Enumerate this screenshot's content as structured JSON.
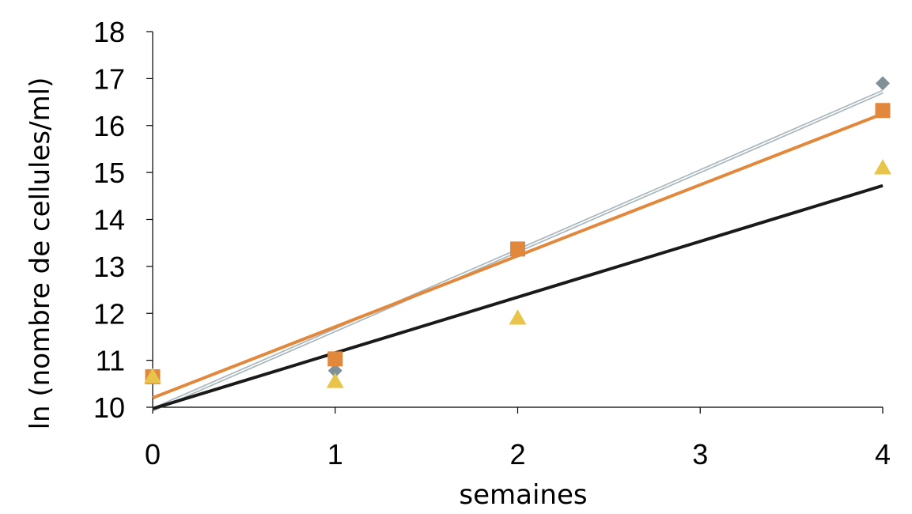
{
  "chart_data": {
    "type": "scatter",
    "title": "",
    "xlabel": "semaines",
    "ylabel": "ln (nombre de cellules/ml)",
    "xlim": [
      0,
      4
    ],
    "ylim": [
      10,
      18
    ],
    "xticks": [
      0,
      1,
      2,
      3,
      4
    ],
    "yticks": [
      10,
      11,
      12,
      13,
      14,
      15,
      16,
      17,
      18
    ],
    "grid": false,
    "legend": "none",
    "series": [
      {
        "marker": "diamond",
        "color": "#7f9097",
        "x": [
          0,
          1,
          2,
          4
        ],
        "y": [
          10.65,
          10.78,
          13.35,
          16.9
        ],
        "trendline": {
          "x": [
            0,
            4
          ],
          "y": [
            9.95,
            16.72
          ],
          "color": "#a9b7bd",
          "style": "double"
        }
      },
      {
        "marker": "square",
        "color": "#e2883c",
        "x": [
          0,
          1,
          2,
          4
        ],
        "y": [
          10.65,
          11.03,
          13.37,
          16.32
        ],
        "trendline": {
          "x": [
            0,
            4
          ],
          "y": [
            10.2,
            16.25
          ],
          "color": "#e2883c",
          "style": "solid"
        }
      },
      {
        "marker": "triangle",
        "color": "#e8c54a",
        "x": [
          0,
          1,
          2,
          4
        ],
        "y": [
          10.65,
          10.55,
          11.9,
          15.1
        ],
        "trendline": {
          "x": [
            0,
            4
          ],
          "y": [
            9.97,
            14.72
          ],
          "color": "#1a1a1a",
          "style": "solid"
        }
      }
    ]
  }
}
